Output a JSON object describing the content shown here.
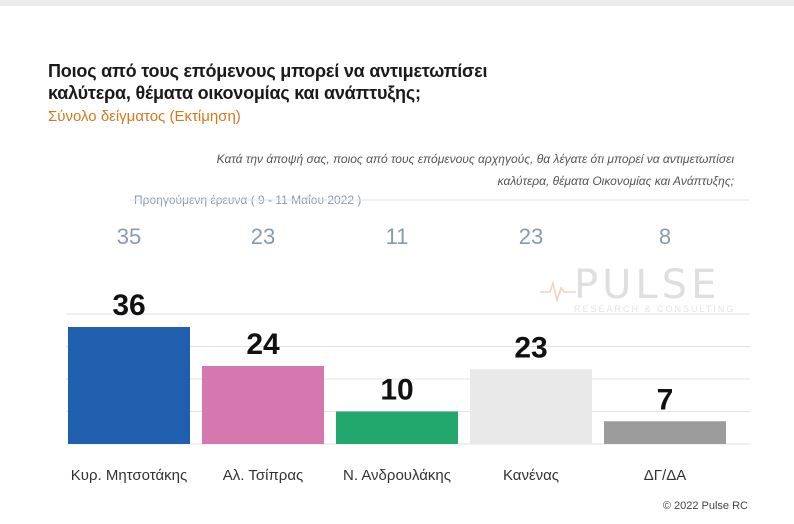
{
  "title": "Ποιος από τους επόμενους μπορεί να αντιμετωπίσει καλύτερα, θέματα οικονομίας και ανάπτυξης;",
  "subtitle": "Σύνολο δείγματος   (Εκτίμηση)",
  "question_line1": "Κατά την άποψή σας, ποιος  από τους επόμενους αρχηγούς, θα λέγατε ότι μπορεί να αντιμετωπίσει",
  "question_line2": "καλύτερα, θέματα Οικονομίας και Ανάπτυξης;",
  "previous_survey_label": "Προηγούμενη έρευνα  ( 9 - 11 Μαΐου  2022 )",
  "watermark": {
    "main": "PULSE",
    "sub": "RESEARCH & CONSULTING"
  },
  "credit": "© 2022 Pulse RC",
  "colors": {
    "title": "#1a1a1a",
    "subtitle": "#d4781d",
    "previous": "#8a9ab0",
    "gridline": "#e3e3e3"
  },
  "chart_data": {
    "type": "bar",
    "categories": [
      "Κυρ. Μητσοτάκης",
      "Αλ. Τσίπρας",
      "Ν. Ανδρουλάκης",
      "Κανένας",
      "ΔΓ/ΔΑ"
    ],
    "series": [
      {
        "values": [
          36,
          24,
          10,
          23,
          7
        ]
      },
      {
        "name": "Προηγούμενη έρευνα  ( 9 - 11 Μαΐου  2022 )",
        "values": [
          35,
          23,
          11,
          23,
          8
        ]
      }
    ],
    "bar_colors": [
      "#1f5fae",
      "#d678b0",
      "#22a86c",
      "#e9e9e9",
      "#9c9c9c"
    ],
    "ylim": [
      0,
      40
    ],
    "xlabel": "",
    "ylabel": "",
    "grid": true
  }
}
